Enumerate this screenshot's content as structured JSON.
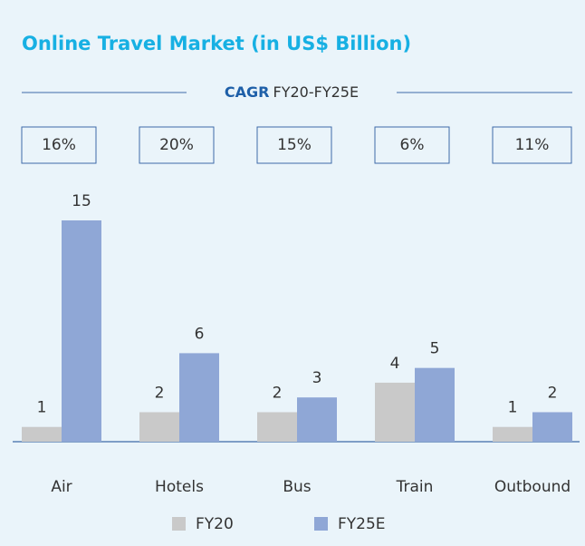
{
  "chart_data": {
    "type": "bar",
    "title": "Online Travel Market (in US$ Billion)",
    "cagr_title": "CAGR",
    "cagr_period": "FY20-FY25E",
    "cagr": {
      "values": [
        16,
        20,
        15,
        6,
        11
      ],
      "value_labels": [
        "16%",
        "20%",
        "15%",
        "6%",
        "11%"
      ]
    },
    "categories": [
      "Air",
      "Hotels",
      "Bus",
      "Train",
      "Outbound"
    ],
    "series": [
      {
        "name": "FY20",
        "color": "#c9c9c9",
        "values": [
          1,
          2,
          2,
          4,
          1
        ]
      },
      {
        "name": "FY25E",
        "color": "#8fa7d6",
        "values": [
          15,
          6,
          3,
          5,
          2
        ]
      }
    ],
    "legend": "bottom"
  }
}
